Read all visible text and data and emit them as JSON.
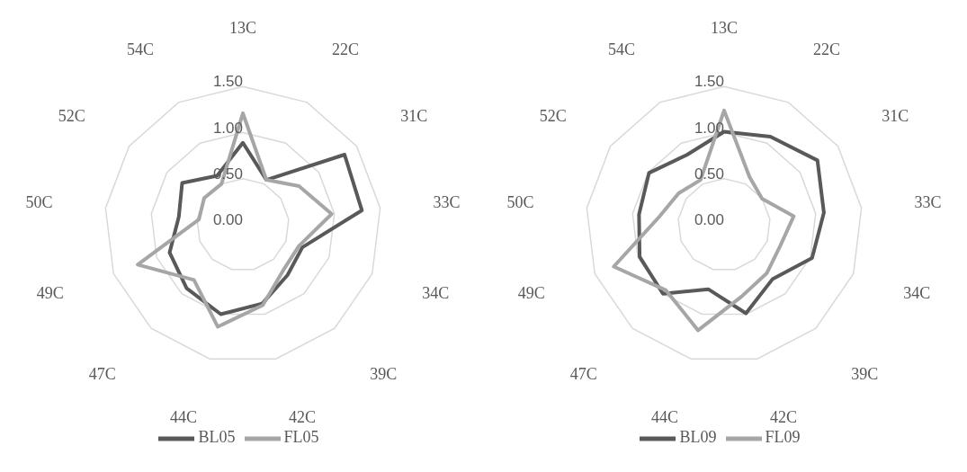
{
  "chart_data": [
    {
      "type": "radar",
      "categories": [
        "13C",
        "22C",
        "31C",
        "33C",
        "34C",
        "39C",
        "42C",
        "44C",
        "47C",
        "49C",
        "50C",
        "52C",
        "54C"
      ],
      "series": [
        {
          "name": "BL05",
          "color": "#595959",
          "values": [
            0.89,
            0.55,
            1.34,
            1.3,
            0.69,
            0.73,
            0.88,
            1.0,
            0.92,
            0.85,
            0.7,
            0.8,
            0.6
          ]
        },
        {
          "name": "FL05",
          "color": "#a6a6a6",
          "values": [
            1.21,
            0.55,
            0.74,
            0.97,
            0.65,
            0.66,
            0.9,
            1.14,
            0.8,
            1.22,
            0.48,
            0.51,
            0.5
          ]
        }
      ],
      "ylim": [
        0,
        1.5
      ],
      "yticks": [
        {
          "value": 0,
          "label": "0.00"
        },
        {
          "value": 0.5,
          "label": "0.50"
        },
        {
          "value": 1,
          "label": "1.00"
        },
        {
          "value": 1.5,
          "label": "1.50"
        }
      ],
      "grid": true,
      "legend": "bottom"
    },
    {
      "type": "radar",
      "categories": [
        "13C",
        "22C",
        "31C",
        "33C",
        "34C",
        "39C",
        "42C",
        "44C",
        "47C",
        "49C",
        "50C",
        "52C",
        "54C"
      ],
      "series": [
        {
          "name": "BL09",
          "color": "#595959",
          "values": [
            1.01,
            1.08,
            1.23,
            1.09,
            1.02,
            0.79,
            0.99,
            0.72,
            1.0,
            0.98,
            0.93,
            0.99,
            0.86
          ]
        },
        {
          "name": "FL09",
          "color": "#a6a6a6",
          "values": [
            1.24,
            0.59,
            0.5,
            0.76,
            0.65,
            0.7,
            0.8,
            1.18,
            0.95,
            1.28,
            0.71,
            0.6,
            0.55
          ]
        }
      ],
      "ylim": [
        0,
        1.5
      ],
      "yticks": [
        {
          "value": 0,
          "label": "0.00"
        },
        {
          "value": 0.5,
          "label": "0.50"
        },
        {
          "value": 1,
          "label": "1.00"
        },
        {
          "value": 1.5,
          "label": "1.50"
        }
      ],
      "grid": true,
      "legend": "bottom"
    }
  ]
}
